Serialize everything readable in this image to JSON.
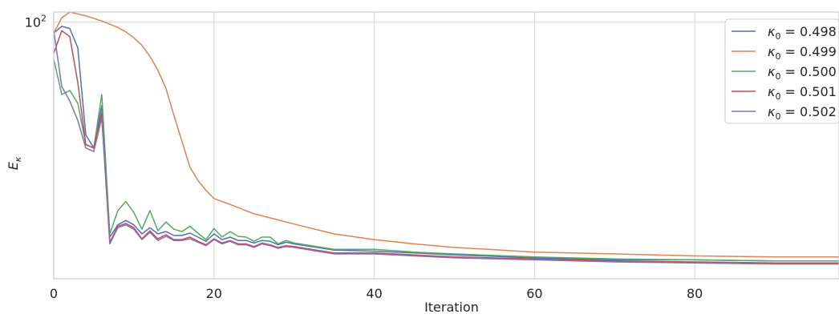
{
  "chart_data": {
    "type": "line",
    "title": "",
    "xlabel": "Iteration",
    "ylabel_math": {
      "base": "E",
      "sub": "κ"
    },
    "y_scale": "log",
    "xlim": [
      0,
      98
    ],
    "ylim": [
      8.6,
      110
    ],
    "grid": true,
    "legend_position": "top-right",
    "x_ticks": [
      0,
      20,
      40,
      60,
      80
    ],
    "x_tick_labels": [
      "0",
      "20",
      "40",
      "60",
      "80"
    ],
    "y_major_ticks": [
      100
    ],
    "y_tick_labels": [
      {
        "base": "10",
        "exp": "2"
      }
    ],
    "colors": {
      "grid": "#dddddd",
      "axes": "#cccccc",
      "legend_border": "#cccccc"
    },
    "series": [
      {
        "name": "κ₀ = 0.498",
        "legend": {
          "prefix": "κ",
          "sub": "0",
          "value": " = 0.498"
        },
        "color": "#4c72b0",
        "x": [
          0,
          1,
          2,
          3,
          4,
          5,
          6,
          7,
          8,
          9,
          10,
          11,
          12,
          13,
          14,
          15,
          16,
          17,
          18,
          19,
          20,
          21,
          22,
          23,
          24,
          25,
          26,
          27,
          28,
          29,
          30,
          35,
          40,
          45,
          50,
          60,
          70,
          80,
          90,
          98
        ],
        "y": [
          90,
          96,
          94,
          78,
          34,
          30,
          45,
          12.8,
          14.4,
          15.0,
          14.4,
          13.2,
          14.0,
          13.2,
          13.5,
          13.0,
          13.0,
          13.3,
          12.8,
          12.3,
          13.2,
          12.5,
          12.8,
          12.4,
          12.4,
          12.1,
          12.4,
          12.3,
          11.9,
          12.2,
          12.0,
          11.3,
          11.2,
          11.0,
          10.8,
          10.5,
          10.3,
          10.3,
          10.2,
          10.2
        ]
      },
      {
        "name": "κ₀ = 0.499",
        "legend": {
          "prefix": "κ",
          "sub": "0",
          "value": " = 0.499"
        },
        "color": "#dd8452",
        "x": [
          0,
          1,
          2,
          4,
          6,
          8,
          9,
          10,
          11,
          12,
          13,
          14,
          15,
          16,
          17,
          18,
          19,
          20,
          22,
          25,
          30,
          35,
          40,
          45,
          50,
          60,
          70,
          80,
          90,
          98
        ],
        "y": [
          90,
          104,
          110,
          106,
          101,
          95,
          91,
          86,
          80,
          72,
          63,
          53,
          41,
          32,
          25,
          22,
          20,
          18.5,
          17.5,
          16.0,
          14.5,
          13.2,
          12.5,
          12.0,
          11.6,
          11.1,
          10.9,
          10.7,
          10.6,
          10.6
        ]
      },
      {
        "name": "κ₀ = 0.500",
        "legend": {
          "prefix": "κ",
          "sub": "0",
          "value": " = 0.500"
        },
        "color": "#55a868",
        "x": [
          0,
          1,
          2,
          3,
          4,
          5,
          6,
          7,
          8,
          9,
          10,
          11,
          12,
          13,
          14,
          15,
          16,
          17,
          18,
          19,
          20,
          21,
          22,
          23,
          24,
          25,
          26,
          27,
          28,
          29,
          30,
          35,
          40,
          45,
          50,
          60,
          70,
          80,
          90,
          98
        ],
        "y": [
          70,
          50,
          52,
          46,
          31,
          30,
          50,
          13.2,
          16.5,
          18,
          16.2,
          13.8,
          16.5,
          13.6,
          14.8,
          13.8,
          13.5,
          14.2,
          13.3,
          12.5,
          13.9,
          12.8,
          13.5,
          12.9,
          12.8,
          12.3,
          12.8,
          12.8,
          12.0,
          12.4,
          12.1,
          11.4,
          11.4,
          11.1,
          10.9,
          10.6,
          10.4,
          10.3,
          10.2,
          10.2
        ]
      },
      {
        "name": "κ₀ = 0.501",
        "legend": {
          "prefix": "κ",
          "sub": "0",
          "value": " = 0.501"
        },
        "color": "#c44e52",
        "x": [
          0,
          1,
          2,
          3,
          4,
          5,
          6,
          7,
          8,
          9,
          10,
          11,
          12,
          13,
          14,
          15,
          16,
          17,
          18,
          19,
          20,
          21,
          22,
          23,
          24,
          25,
          26,
          27,
          28,
          29,
          30,
          35,
          40,
          45,
          50,
          60,
          70,
          80,
          90,
          98
        ],
        "y": [
          74,
          92,
          87,
          56,
          31,
          30,
          42,
          12.2,
          14.2,
          14.6,
          14.0,
          12.6,
          13.6,
          12.6,
          13.1,
          12.5,
          12.5,
          12.8,
          12.3,
          11.9,
          12.6,
          12.1,
          12.4,
          12.0,
          12.0,
          11.7,
          12.1,
          11.9,
          11.6,
          11.8,
          11.7,
          11.0,
          11.0,
          10.8,
          10.6,
          10.4,
          10.2,
          10.1,
          10.0,
          10.0
        ]
      },
      {
        "name": "κ₀ = 0.502",
        "legend": {
          "prefix": "κ",
          "sub": "0",
          "value": " = 0.502"
        },
        "color": "#8172b2",
        "x": [
          0,
          1,
          2,
          3,
          4,
          5,
          6,
          7,
          8,
          9,
          10,
          11,
          12,
          13,
          14,
          15,
          16,
          17,
          18,
          19,
          20,
          21,
          22,
          23,
          24,
          25,
          26,
          27,
          28,
          29,
          30,
          35,
          40,
          45,
          50,
          60,
          70,
          80,
          90,
          98
        ],
        "y": [
          92,
          54,
          47,
          39,
          30,
          29,
          40,
          12.0,
          14.0,
          14.4,
          13.8,
          12.5,
          13.4,
          12.4,
          12.9,
          12.4,
          12.4,
          12.6,
          12.2,
          11.8,
          12.5,
          12.0,
          12.3,
          11.9,
          11.9,
          11.6,
          12.0,
          11.8,
          11.5,
          11.7,
          11.6,
          10.9,
          10.9,
          10.7,
          10.5,
          10.3,
          10.1,
          10.0,
          9.9,
          9.9
        ]
      }
    ]
  }
}
